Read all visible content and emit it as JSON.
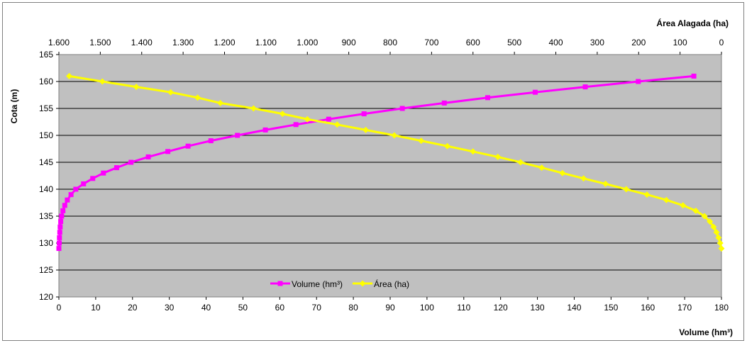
{
  "chart_data": {
    "type": "line",
    "title": "",
    "xlabel": "Volume (hm³)",
    "x2label": "Área Alagada (ha)",
    "ylabel": "Cota (m)",
    "xlim": [
      0,
      180
    ],
    "x2lim": [
      1600,
      0
    ],
    "x2_reversed": true,
    "ylim": [
      120,
      165
    ],
    "x_ticks": [
      0,
      10,
      20,
      30,
      40,
      50,
      60,
      70,
      80,
      90,
      100,
      110,
      120,
      130,
      140,
      150,
      160,
      170,
      180
    ],
    "x_tick_labels": [
      "0",
      "10",
      "20",
      "30",
      "40",
      "50",
      "60",
      "70",
      "80",
      "90",
      "100",
      "110",
      "120",
      "130",
      "140",
      "150",
      "160",
      "170",
      "180"
    ],
    "x2_ticks": [
      1600,
      1500,
      1400,
      1300,
      1200,
      1100,
      1000,
      900,
      800,
      700,
      600,
      500,
      400,
      300,
      200,
      100,
      0
    ],
    "x2_tick_labels": [
      "1.600",
      "1.500",
      "1.400",
      "1.300",
      "1.200",
      "1.100",
      "1.000",
      "900",
      "800",
      "700",
      "600",
      "500",
      "400",
      "300",
      "200",
      "100",
      "0"
    ],
    "y_ticks": [
      120,
      125,
      130,
      135,
      140,
      145,
      150,
      155,
      160,
      165
    ],
    "y_tick_labels": [
      "120",
      "125",
      "130",
      "135",
      "140",
      "145",
      "150",
      "155",
      "160",
      "165"
    ],
    "grid": "horizontal",
    "plot_background": "#c0c0c0",
    "legend_position": "bottom-center",
    "series": [
      {
        "name": "Volume (hm³)",
        "axis": "x",
        "color": "#ff00ff",
        "marker": "square",
        "points": [
          [
            0.0,
            129
          ],
          [
            0.1,
            130
          ],
          [
            0.15,
            131
          ],
          [
            0.25,
            132
          ],
          [
            0.35,
            133
          ],
          [
            0.5,
            134
          ],
          [
            0.75,
            135
          ],
          [
            1.1,
            136
          ],
          [
            1.6,
            137
          ],
          [
            2.3,
            138
          ],
          [
            3.3,
            139
          ],
          [
            4.6,
            140
          ],
          [
            6.7,
            141
          ],
          [
            9.2,
            142
          ],
          [
            12.1,
            143
          ],
          [
            15.7,
            144
          ],
          [
            19.6,
            145
          ],
          [
            24.3,
            146
          ],
          [
            29.6,
            147
          ],
          [
            35.1,
            148
          ],
          [
            41.3,
            149
          ],
          [
            48.5,
            150
          ],
          [
            56.1,
            151
          ],
          [
            64.4,
            152
          ],
          [
            73.3,
            153
          ],
          [
            82.9,
            154
          ],
          [
            93.3,
            155
          ],
          [
            104.7,
            156
          ],
          [
            116.5,
            157
          ],
          [
            129.4,
            158
          ],
          [
            143.0,
            159
          ],
          [
            157.4,
            160
          ],
          [
            172.5,
            161
          ]
        ]
      },
      {
        "name": "Área (ha)",
        "axis": "x2",
        "color": "#ffff00",
        "marker": "diamond",
        "points": [
          [
            0,
            129
          ],
          [
            3,
            130
          ],
          [
            7,
            131
          ],
          [
            12,
            132
          ],
          [
            19,
            133
          ],
          [
            28,
            134
          ],
          [
            41,
            135
          ],
          [
            62,
            136
          ],
          [
            93,
            137
          ],
          [
            133,
            138
          ],
          [
            180,
            139
          ],
          [
            230,
            140
          ],
          [
            280,
            141
          ],
          [
            333,
            142
          ],
          [
            384,
            143
          ],
          [
            434,
            144
          ],
          [
            485,
            145
          ],
          [
            540,
            146
          ],
          [
            600,
            147
          ],
          [
            662,
            148
          ],
          [
            725,
            149
          ],
          [
            790,
            150
          ],
          [
            859,
            151
          ],
          [
            928,
            152
          ],
          [
            1000,
            153
          ],
          [
            1060,
            154
          ],
          [
            1130,
            155
          ],
          [
            1210,
            156
          ],
          [
            1265,
            157
          ],
          [
            1330,
            158
          ],
          [
            1413,
            159
          ],
          [
            1495,
            160
          ],
          [
            1575,
            161
          ]
        ]
      }
    ]
  }
}
